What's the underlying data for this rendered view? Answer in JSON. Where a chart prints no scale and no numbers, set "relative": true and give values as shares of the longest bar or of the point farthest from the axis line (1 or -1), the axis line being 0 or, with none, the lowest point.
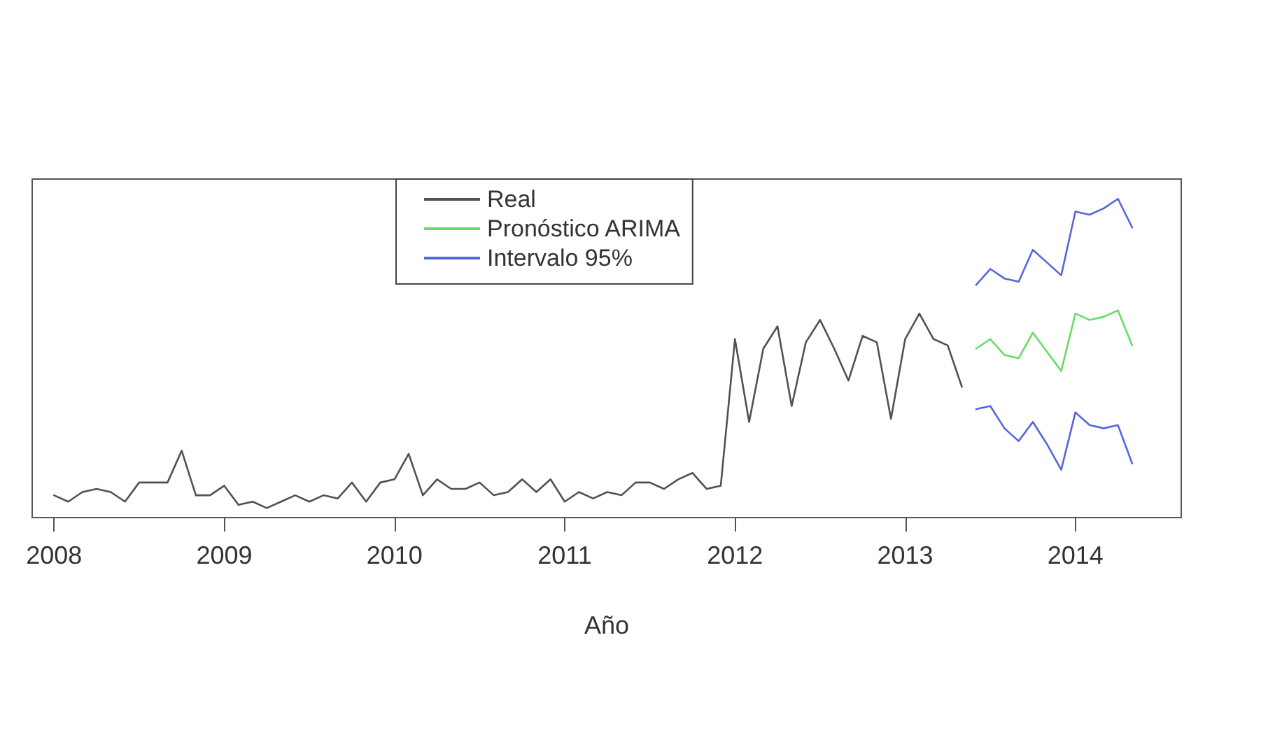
{
  "chart_data": {
    "type": "line",
    "relative": true,
    "xlabel": "Año",
    "xlim": [
      "2007-11-15",
      "2014-08-15"
    ],
    "xticks": [
      "2008",
      "2009",
      "2010",
      "2011",
      "2012",
      "2013",
      "2014"
    ],
    "grid": false,
    "legend": "top",
    "marker": "none",
    "line_style": "solid",
    "series": [
      {
        "name": "Real",
        "color": "#505058",
        "x": [
          "2008-01",
          "2008-02",
          "2008-03",
          "2008-04",
          "2008-05",
          "2008-06",
          "2008-07",
          "2008-08",
          "2008-09",
          "2008-10",
          "2008-11",
          "2008-12",
          "2009-01",
          "2009-02",
          "2009-03",
          "2009-04",
          "2009-05",
          "2009-06",
          "2009-07",
          "2009-08",
          "2009-09",
          "2009-10",
          "2009-11",
          "2009-12",
          "2010-01",
          "2010-02",
          "2010-03",
          "2010-04",
          "2010-05",
          "2010-06",
          "2010-07",
          "2010-08",
          "2010-09",
          "2010-10",
          "2010-11",
          "2010-12",
          "2011-01",
          "2011-02",
          "2011-03",
          "2011-04",
          "2011-05",
          "2011-06",
          "2011-07",
          "2011-08",
          "2011-09",
          "2011-10",
          "2011-11",
          "2011-12",
          "2012-01",
          "2012-02",
          "2012-03",
          "2012-04",
          "2012-05",
          "2012-06",
          "2012-07",
          "2012-08",
          "2012-09",
          "2012-10",
          "2012-11",
          "2012-12",
          "2013-01",
          "2013-02",
          "2013-03",
          "2013-04",
          "2013-05"
        ],
        "values": [
          0.07,
          0.05,
          0.08,
          0.09,
          0.08,
          0.05,
          0.11,
          0.11,
          0.11,
          0.21,
          0.07,
          0.07,
          0.1,
          0.04,
          0.05,
          0.03,
          0.05,
          0.07,
          0.05,
          0.07,
          0.06,
          0.11,
          0.05,
          0.11,
          0.12,
          0.2,
          0.07,
          0.12,
          0.09,
          0.09,
          0.11,
          0.07,
          0.08,
          0.12,
          0.08,
          0.12,
          0.05,
          0.08,
          0.06,
          0.08,
          0.07,
          0.11,
          0.11,
          0.09,
          0.12,
          0.14,
          0.09,
          0.1,
          0.56,
          0.3,
          0.53,
          0.6,
          0.35,
          0.55,
          0.62,
          0.53,
          0.43,
          0.57,
          0.55,
          0.31,
          0.56,
          0.64,
          0.56,
          0.54,
          0.41
        ]
      },
      {
        "name": "Pronóstico ARIMA",
        "color": "#66dd66",
        "x": [
          "2013-06",
          "2013-07",
          "2013-08",
          "2013-09",
          "2013-10",
          "2013-11",
          "2013-12",
          "2014-01",
          "2014-02",
          "2014-03",
          "2014-04",
          "2014-05"
        ],
        "values": [
          0.53,
          0.56,
          0.51,
          0.5,
          0.58,
          0.52,
          0.46,
          0.64,
          0.62,
          0.63,
          0.65,
          0.54
        ]
      },
      {
        "name": "Intervalo 95%",
        "color": "#5566dd",
        "x": [
          "2013-06",
          "2013-07",
          "2013-08",
          "2013-09",
          "2013-10",
          "2013-11",
          "2013-12",
          "2014-01",
          "2014-02",
          "2014-03",
          "2014-04",
          "2014-05"
        ],
        "values": [
          0.73,
          0.78,
          0.75,
          0.74,
          0.84,
          0.8,
          0.76,
          0.96,
          0.95,
          0.97,
          1.0,
          0.91
        ]
      },
      {
        "color": "#5566dd",
        "x": [
          "2013-06",
          "2013-07",
          "2013-08",
          "2013-09",
          "2013-10",
          "2013-11",
          "2013-12",
          "2014-01",
          "2014-02",
          "2014-03",
          "2014-04",
          "2014-05"
        ],
        "values": [
          0.34,
          0.35,
          0.28,
          0.24,
          0.3,
          0.23,
          0.15,
          0.33,
          0.29,
          0.28,
          0.29,
          0.17
        ]
      }
    ]
  }
}
